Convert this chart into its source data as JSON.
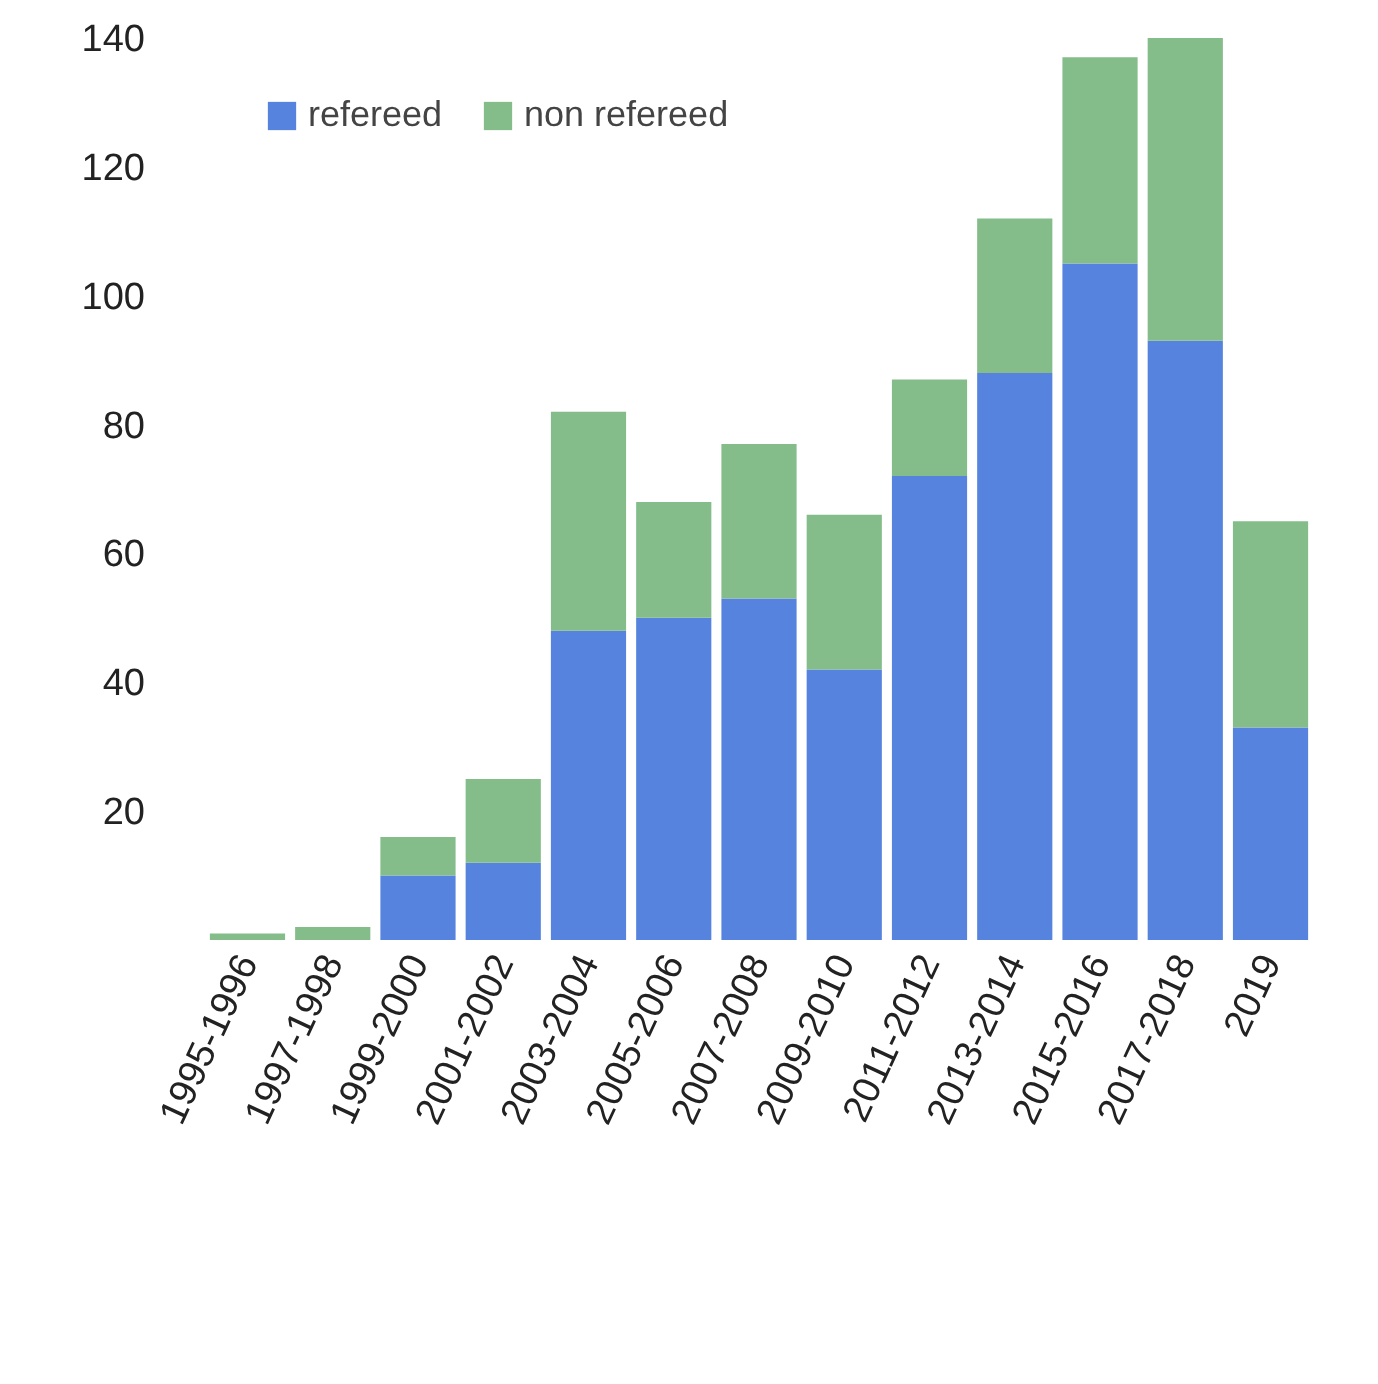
{
  "chart_data": {
    "type": "bar",
    "stacked": true,
    "legend": "top left",
    "grid": false,
    "categories": [
      "1995-1996",
      "1997-1998",
      "1999-2000",
      "2001-2002",
      "2003-2004",
      "2005-2006",
      "2007-2008",
      "2009-2010",
      "2011-2012",
      "2013-2014",
      "2015-2016",
      "2017-2018",
      "2019"
    ],
    "series": [
      {
        "name": "refereed",
        "color": "#5683de",
        "values": [
          0,
          0,
          10,
          12,
          48,
          50,
          53,
          42,
          72,
          88,
          105,
          93,
          33
        ]
      },
      {
        "name": "non refereed",
        "color": "#84bc8a",
        "values": [
          1,
          2,
          6,
          13,
          34,
          18,
          24,
          24,
          15,
          24,
          32,
          47,
          32
        ]
      }
    ],
    "ylim": [
      0,
      140
    ],
    "yticks": [
      20,
      40,
      60,
      80,
      100,
      120,
      140
    ]
  }
}
